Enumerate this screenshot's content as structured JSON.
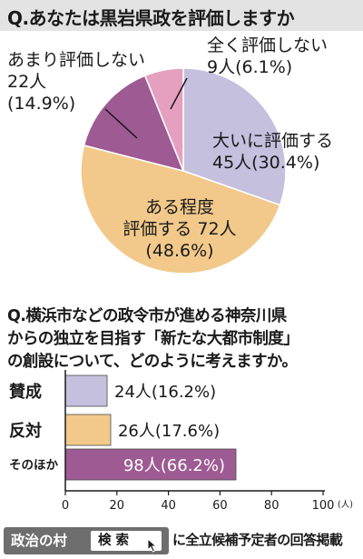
{
  "question1": "Q.あなたは黒岩県政を評価しますか",
  "question2": {
    "lines": [
      "Q.横浜市などの政令市が進める神奈川県",
      "からの独立を目指す「新たな大都市制度」",
      "の創設について、どのように考えますか。"
    ]
  },
  "chart_data": [
    {
      "type": "pie",
      "title": "Q.あなたは黒岩県政を評価しますか",
      "slices": [
        {
          "label": "大いに評価する",
          "count": "45人",
          "percent_text": "(30.4%)",
          "value": 30.4,
          "color": "#c4c0de"
        },
        {
          "label": "ある程度評価する",
          "count": "72人",
          "percent_text": "(48.6%)",
          "value": 48.6,
          "color": "#f2c98a"
        },
        {
          "label": "あまり評価しない",
          "count": "22人",
          "percent_text": "(14.9%)",
          "value": 14.9,
          "color": "#9e5a92"
        },
        {
          "label": "全く評価しない",
          "count": "9人",
          "percent_text": "(6.1%)",
          "value": 6.1,
          "color": "#e6a0bf"
        }
      ],
      "label_lines": [
        [
          "大いに評価する",
          "45人(30.4%)"
        ],
        [
          "ある程度",
          "評価する 72人",
          "(48.6%)"
        ],
        [
          "あまり評価しない",
          "22人",
          "(14.9%)"
        ],
        [
          "全く評価しない",
          "9人(6.1%)"
        ]
      ]
    },
    {
      "type": "bar",
      "orientation": "horizontal",
      "categories": [
        "賛成",
        "反対",
        "そのほか"
      ],
      "series": [
        {
          "values": [
            16.2,
            17.6,
            66.2
          ],
          "counts": [
            24,
            26,
            98
          ]
        }
      ],
      "data_labels": [
        "24人(16.2%)",
        "26人(17.6%)",
        "98人(66.2%)"
      ],
      "colors": [
        "#c4c0de",
        "#f2c98a",
        "#9e5a92"
      ],
      "xlim": [
        0,
        100
      ],
      "xticks": [
        "0",
        "20",
        "40",
        "60",
        "80",
        "100"
      ],
      "xunit": "(人)",
      "grid": false
    }
  ],
  "footer": {
    "village_label": "政治の村",
    "search_label": "検 索",
    "note": "に全立候補予定者の回答掲載"
  }
}
